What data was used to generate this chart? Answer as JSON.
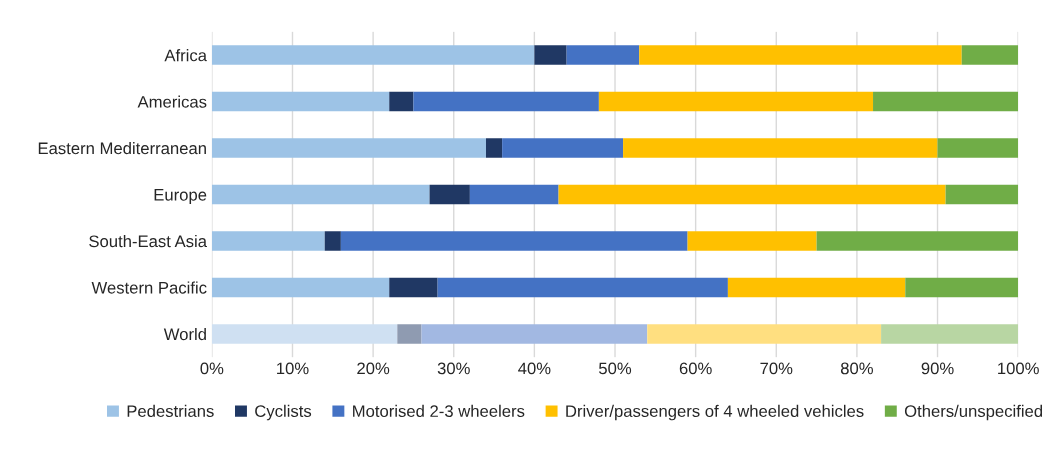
{
  "chart_data": {
    "type": "bar",
    "orientation": "horizontal",
    "stacked": true,
    "categories": [
      "Africa",
      "Americas",
      "Eastern Mediterranean",
      "Europe",
      "South-East Asia",
      "Western Pacific",
      "World"
    ],
    "series": [
      {
        "name": "Pedestrians",
        "color": "#9dc3e6",
        "colors": [
          "#9dc3e6",
          "#9dc3e6",
          "#9dc3e6",
          "#9dc3e6",
          "#9dc3e6",
          "#9dc3e6",
          "#cfe0f2"
        ],
        "values": [
          40,
          22,
          34,
          27,
          14,
          22,
          23
        ]
      },
      {
        "name": "Cyclists",
        "color": "#203864",
        "colors": [
          "#203864",
          "#203864",
          "#203864",
          "#203864",
          "#203864",
          "#203864",
          "#8f9bb1"
        ],
        "values": [
          4,
          3,
          2,
          5,
          2,
          6,
          3
        ]
      },
      {
        "name": "Motorised 2-3 wheelers",
        "color": "#4472c4",
        "colors": [
          "#4472c4",
          "#4472c4",
          "#4472c4",
          "#4472c4",
          "#4472c4",
          "#4472c4",
          "#a2b8e2"
        ],
        "values": [
          9,
          23,
          15,
          11,
          43,
          36,
          28
        ]
      },
      {
        "name": "Driver/passengers of 4 wheeled vehicles",
        "color": "#ffc000",
        "colors": [
          "#ffc000",
          "#ffc000",
          "#ffc000",
          "#ffc000",
          "#ffc000",
          "#ffc000",
          "#ffdf80"
        ],
        "values": [
          40,
          34,
          39,
          48,
          16,
          22,
          29
        ]
      },
      {
        "name": "Others/unspecified",
        "color": "#70ad47",
        "colors": [
          "#70ad47",
          "#70ad47",
          "#70ad47",
          "#70ad47",
          "#70ad47",
          "#70ad47",
          "#b8d6a3"
        ],
        "values": [
          7,
          18,
          10,
          9,
          25,
          14,
          17
        ]
      }
    ],
    "xlim": [
      0,
      100
    ],
    "xticks": [
      {
        "value": 0,
        "label": "0%"
      },
      {
        "value": 10,
        "label": "10%"
      },
      {
        "value": 20,
        "label": "20%"
      },
      {
        "value": 30,
        "label": "30%"
      },
      {
        "value": 40,
        "label": "40%"
      },
      {
        "value": 50,
        "label": "50%"
      },
      {
        "value": 60,
        "label": "60%"
      },
      {
        "value": 70,
        "label": "70%"
      },
      {
        "value": 80,
        "label": "80%"
      },
      {
        "value": 90,
        "label": "90%"
      },
      {
        "value": 100,
        "label": "100%"
      }
    ],
    "grid": "x",
    "legend": "bottom"
  }
}
